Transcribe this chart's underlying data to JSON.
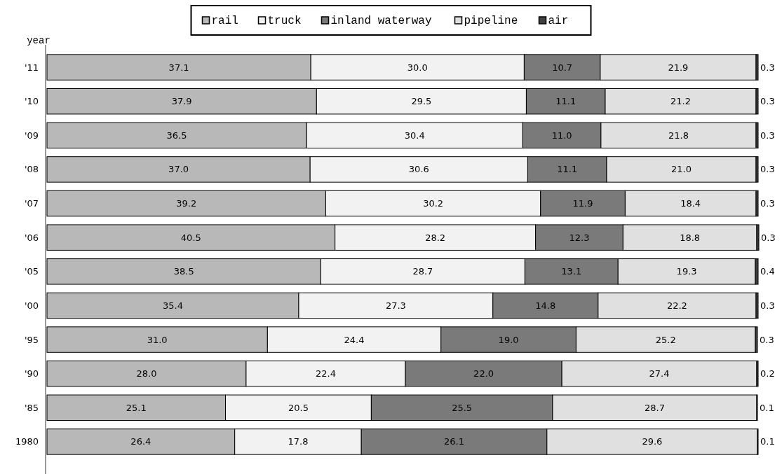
{
  "chart_data": {
    "type": "bar",
    "orientation": "horizontal",
    "stacked": true,
    "ylabel": "year",
    "categories": [
      "'11",
      "'10",
      "'09",
      "'08",
      "'07",
      "'06",
      "'05",
      "'00",
      "'95",
      "'90",
      "'85",
      "1980"
    ],
    "series": [
      {
        "name": "rail",
        "color": "#b8b8b8",
        "values": [
          37.1,
          37.9,
          36.5,
          37.0,
          39.2,
          40.5,
          38.5,
          35.4,
          31.0,
          28.0,
          25.1,
          26.4
        ],
        "value_labels": [
          "37.1",
          "37.9",
          "36.5",
          "37.0",
          "39.2",
          "40.5",
          "38.5",
          "35.4",
          "31.0",
          "28.0",
          "25.1",
          "26.4"
        ]
      },
      {
        "name": "truck",
        "color": "#f2f2f2",
        "values": [
          30.0,
          29.5,
          30.4,
          30.6,
          30.2,
          28.2,
          28.7,
          27.3,
          24.4,
          22.4,
          20.5,
          17.8
        ],
        "value_labels": [
          "30.0",
          "29.5",
          "30.4",
          "30.6",
          "30.2",
          "28.2",
          "28.7",
          "27.3",
          "24.4",
          "22.4",
          "20.5",
          "17.8"
        ]
      },
      {
        "name": "inland waterway",
        "color": "#7a7a7a",
        "values": [
          10.7,
          11.1,
          11.0,
          11.1,
          11.9,
          12.3,
          13.1,
          14.8,
          19.0,
          22.0,
          25.5,
          26.1
        ],
        "value_labels": [
          "10.7",
          "11.1",
          "11.0",
          "11.1",
          "11.9",
          "12.3",
          "13.1",
          "14.8",
          "19.0",
          "22.0",
          "25.5",
          "26.1"
        ]
      },
      {
        "name": "pipeline",
        "color": "#e0e0e0",
        "values": [
          21.9,
          21.2,
          21.8,
          21.0,
          18.4,
          18.8,
          19.3,
          22.2,
          25.2,
          27.4,
          28.7,
          29.6
        ],
        "value_labels": [
          "21.9",
          "21.2",
          "21.8",
          "21.0",
          "18.4",
          "18.8",
          "19.3",
          "22.2",
          "25.2",
          "27.4",
          "28.7",
          "29.6"
        ]
      },
      {
        "name": "air",
        "color": "#404040",
        "values": [
          0.3,
          0.3,
          0.3,
          0.3,
          0.3,
          0.3,
          0.4,
          0.3,
          0.3,
          0.2,
          0.1,
          0.1
        ],
        "value_labels": [
          "0.3",
          "0.3",
          "0.3",
          "0.3",
          "0.3",
          "0.3",
          "0.4",
          "0.3",
          "0.3",
          "0.2",
          "0.1",
          "0.1"
        ]
      }
    ],
    "xlim": [
      0,
      100
    ],
    "tick_labels": "y",
    "legend": "top",
    "grid": false
  }
}
